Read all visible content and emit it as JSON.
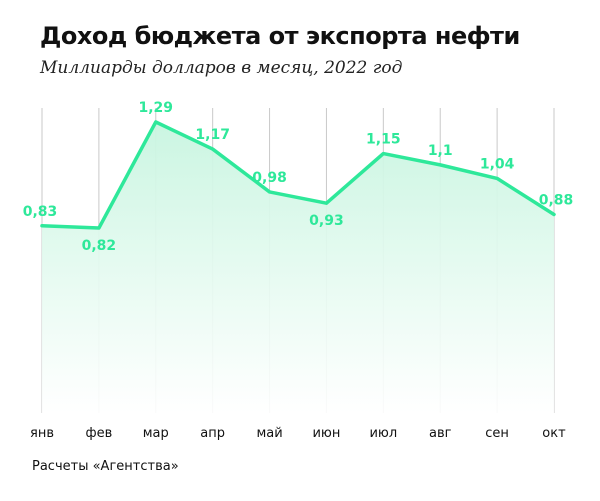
{
  "header": {
    "title": "Доход бюджета от экспорта нефти",
    "subtitle": "Миллиарды долларов в месяц, 2022 год"
  },
  "footer": {
    "source": "Расчеты «Агентства»"
  },
  "colors": {
    "series": "#2ee89a",
    "area_top": "#c8f5e0",
    "grid": "#c9c9c9"
  },
  "chart_data": {
    "type": "area",
    "title": "Доход бюджета от экспорта нефти",
    "subtitle": "Миллиарды долларов в месяц, 2022 год",
    "categories": [
      "янв",
      "фев",
      "мар",
      "апр",
      "май",
      "июн",
      "июл",
      "авг",
      "сен",
      "окт"
    ],
    "values": [
      0.83,
      0.82,
      1.29,
      1.17,
      0.98,
      0.93,
      1.15,
      1.1,
      1.04,
      0.88
    ],
    "value_labels": [
      "0,83",
      "0,82",
      "1,29",
      "1,17",
      "0,98",
      "0,93",
      "1,15",
      "1,1",
      "1,04",
      "0,88"
    ],
    "ylim": [
      0,
      1.29
    ],
    "grid": "vertical",
    "legend": "none"
  }
}
